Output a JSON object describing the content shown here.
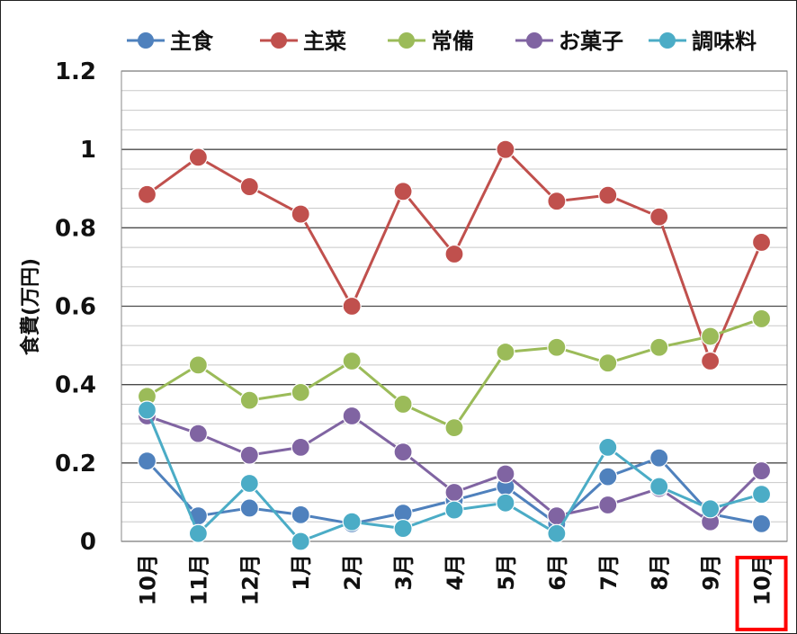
{
  "chart_data": {
    "type": "line",
    "title": "",
    "xlabel": "",
    "ylabel": "食費(万円)",
    "categories": [
      "10月",
      "11月",
      "12月",
      "1月",
      "2月",
      "3月",
      "4月",
      "5月",
      "6月",
      "7月",
      "8月",
      "9月",
      "10月"
    ],
    "ylim": [
      0,
      1.2
    ],
    "y_major_ticks": [
      "0",
      "0.2",
      "0.4",
      "0.6",
      "0.8",
      "1",
      "1.2"
    ],
    "y_major_values": [
      0,
      0.2,
      0.4,
      0.6,
      0.8,
      1.0,
      1.2
    ],
    "grid": "on",
    "legend_position": "top",
    "highlighted_category": "10月",
    "highlight_color": "#ff0000",
    "series": [
      {
        "name": "主食",
        "color": "#4f81bd",
        "values": [
          0.205,
          0.065,
          0.085,
          0.068,
          0.045,
          0.072,
          0.105,
          0.14,
          0.045,
          0.165,
          0.213,
          0.07,
          0.045
        ]
      },
      {
        "name": "主菜",
        "color": "#c0504d",
        "values": [
          0.885,
          0.98,
          0.905,
          0.835,
          0.6,
          0.893,
          0.733,
          1.0,
          0.868,
          0.883,
          0.828,
          0.46,
          0.763
        ]
      },
      {
        "name": "常備",
        "color": "#9bbb59",
        "values": [
          0.37,
          0.45,
          0.36,
          0.38,
          0.46,
          0.35,
          0.29,
          0.483,
          0.495,
          0.455,
          0.495,
          0.523,
          0.568
        ]
      },
      {
        "name": "お菓子",
        "color": "#8064a2",
        "values": [
          0.32,
          0.275,
          0.22,
          0.24,
          0.32,
          0.228,
          0.125,
          0.172,
          0.065,
          0.093,
          0.135,
          0.05,
          0.18
        ]
      },
      {
        "name": "調味料",
        "color": "#4bacc6",
        "values": [
          0.335,
          0.02,
          0.148,
          0.0,
          0.05,
          0.033,
          0.08,
          0.098,
          0.02,
          0.24,
          0.14,
          0.083,
          0.12
        ]
      }
    ]
  }
}
